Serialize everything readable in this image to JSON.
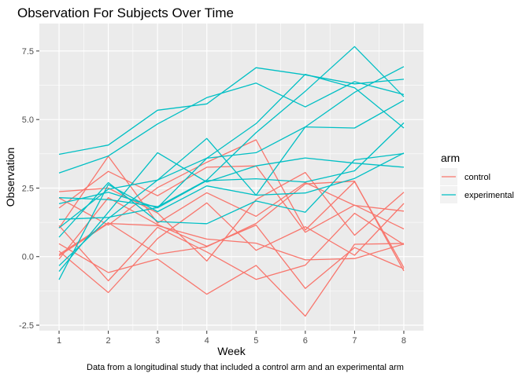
{
  "chart_data": {
    "type": "line",
    "title": "Observation For Subjects Over Time",
    "xlabel": "Week",
    "ylabel": "Observation",
    "caption": "Data from a longitudinal study that included a control arm and an experimental arm",
    "x": [
      1,
      2,
      3,
      4,
      5,
      6,
      7,
      8
    ],
    "x_tick_labels": [
      "1",
      "2",
      "3",
      "4",
      "5",
      "6",
      "7",
      "8"
    ],
    "xlim": [
      0.6,
      8.4
    ],
    "ylim": [
      -2.7,
      8.5
    ],
    "y_ticks": [
      -2.5,
      0,
      2.5,
      5,
      7.5
    ],
    "y_tick_labels": [
      "-2.5",
      "0.0",
      "2.5",
      "5.0",
      "7.5"
    ],
    "grid": true,
    "legend": {
      "title": "arm",
      "position": "right",
      "entries": [
        {
          "label": "control",
          "color": "#F8766D"
        },
        {
          "label": "experimental",
          "color": "#00BFC4"
        }
      ]
    },
    "series": [
      {
        "group": "control",
        "color": "#F8766D",
        "values": [
          0.2,
          -1.31,
          0.66,
          1.96,
          0.23,
          1.09,
          0.05,
          1.94
        ]
      },
      {
        "group": "control",
        "color": "#F8766D",
        "values": [
          1.13,
          -0.88,
          1.07,
          0.17,
          -0.83,
          -0.31,
          1.58,
          0.44
        ]
      },
      {
        "group": "control",
        "color": "#F8766D",
        "values": [
          1.77,
          3.11,
          2.22,
          3.26,
          3.31,
          0.89,
          1.88,
          1.01
        ]
      },
      {
        "group": "control",
        "color": "#F8766D",
        "values": [
          1.04,
          3.66,
          1.22,
          2.33,
          1.47,
          2.7,
          1.87,
          1.66
        ]
      },
      {
        "group": "control",
        "color": "#F8766D",
        "values": [
          0.47,
          -0.58,
          -0.09,
          -1.37,
          -0.32,
          -2.17,
          0.45,
          0.48
        ]
      },
      {
        "group": "control",
        "color": "#F8766D",
        "values": [
          2.37,
          2.5,
          1.59,
          -0.16,
          2.08,
          3.07,
          0.78,
          2.35
        ]
      },
      {
        "group": "control",
        "color": "#F8766D",
        "values": [
          0.03,
          1.21,
          1.13,
          0.64,
          0.49,
          -0.12,
          -0.07,
          0.46
        ]
      },
      {
        "group": "control",
        "color": "#F8766D",
        "values": [
          -0.09,
          2.15,
          1.17,
          0.38,
          1.15,
          -1.16,
          0.33,
          -0.44
        ]
      },
      {
        "group": "control",
        "color": "#F8766D",
        "values": [
          0.08,
          1.24,
          0.09,
          0.36,
          1.21,
          2.65,
          2.75,
          -0.52
        ]
      },
      {
        "group": "control",
        "color": "#F8766D",
        "values": [
          2.14,
          1.15,
          2.52,
          3.44,
          4.26,
          0.97,
          2.73,
          -0.4
        ]
      },
      {
        "group": "experimental",
        "color": "#00BFC4",
        "values": [
          3.05,
          3.67,
          4.84,
          5.8,
          6.33,
          5.46,
          6.38,
          5.91
        ]
      },
      {
        "group": "experimental",
        "color": "#00BFC4",
        "values": [
          -0.84,
          2.63,
          1.64,
          2.58,
          2.24,
          2.32,
          2.85,
          3.78
        ]
      },
      {
        "group": "experimental",
        "color": "#00BFC4",
        "values": [
          2.15,
          2.08,
          1.82,
          2.79,
          4.52,
          6.03,
          7.66,
          5.83
        ]
      },
      {
        "group": "experimental",
        "color": "#00BFC4",
        "values": [
          1.93,
          2.35,
          1.78,
          2.77,
          2.84,
          2.72,
          3.13,
          4.88
        ]
      },
      {
        "group": "experimental",
        "color": "#00BFC4",
        "values": [
          1.05,
          2.46,
          2.79,
          4.31,
          2.24,
          4.73,
          4.69,
          5.7
        ]
      },
      {
        "group": "experimental",
        "color": "#00BFC4",
        "values": [
          -0.54,
          1.62,
          3.79,
          2.72,
          3.31,
          3.6,
          3.41,
          3.26
        ]
      },
      {
        "group": "experimental",
        "color": "#00BFC4",
        "values": [
          0.71,
          2.7,
          1.28,
          1.2,
          2.03,
          1.62,
          3.53,
          3.76
        ]
      },
      {
        "group": "experimental",
        "color": "#00BFC4",
        "values": [
          -0.33,
          1.39,
          2.79,
          3.59,
          3.79,
          4.73,
          5.99,
          6.93
        ]
      },
      {
        "group": "experimental",
        "color": "#00BFC4",
        "values": [
          1.36,
          1.43,
          1.79,
          3.59,
          4.85,
          6.65,
          6.16,
          4.69
        ]
      },
      {
        "group": "experimental",
        "color": "#00BFC4",
        "values": [
          3.73,
          4.07,
          5.34,
          5.57,
          6.89,
          6.63,
          6.3,
          6.47
        ]
      }
    ]
  }
}
